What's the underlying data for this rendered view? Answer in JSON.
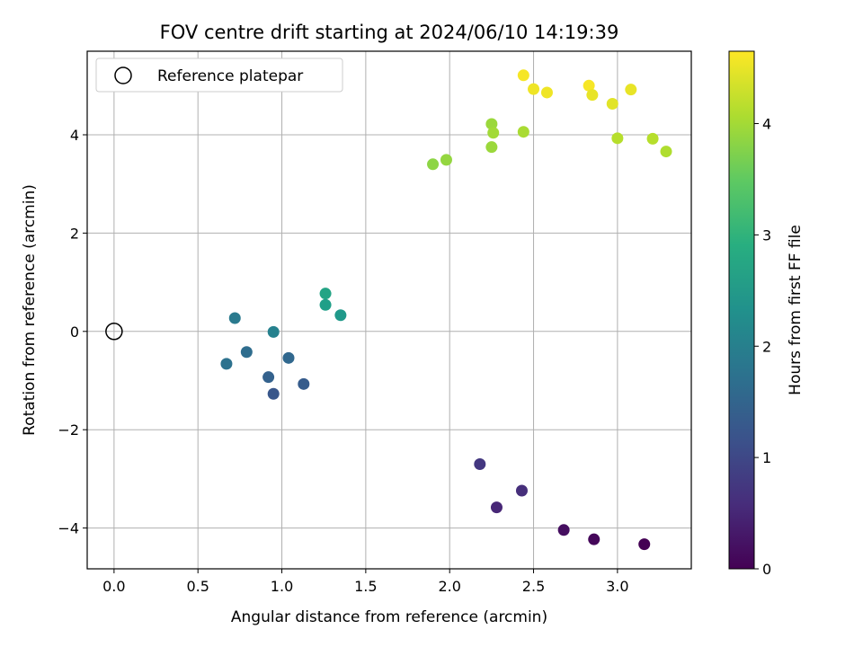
{
  "chart_data": {
    "type": "scatter",
    "title": "FOV centre drift starting at 2024/06/10 14:19:39",
    "xlabel": "Angular distance from reference (arcmin)",
    "ylabel": "Rotation from reference (arcmin)",
    "xlim": [
      -0.16,
      3.44
    ],
    "ylim": [
      -4.83,
      5.7
    ],
    "x_ticks": [
      0.0,
      0.5,
      1.0,
      1.5,
      2.0,
      2.5,
      3.0
    ],
    "x_tick_labels": [
      "0.0",
      "0.5",
      "1.0",
      "1.5",
      "2.0",
      "2.5",
      "3.0"
    ],
    "y_ticks": [
      -4,
      -2,
      0,
      2,
      4
    ],
    "y_tick_labels": [
      "−4",
      "−2",
      "0",
      "2",
      "4"
    ],
    "grid": true,
    "legend": {
      "placement": "top-left",
      "entries": [
        "Reference platepar"
      ]
    },
    "reference_point": {
      "x": 0.0,
      "y": 0.0
    },
    "colorbar": {
      "label": "Hours from first FF file",
      "range": [
        0,
        4.65
      ],
      "ticks": [
        0,
        1,
        2,
        3,
        4
      ],
      "tick_labels": [
        "0",
        "1",
        "2",
        "3",
        "4"
      ],
      "colormap": "viridis"
    },
    "points": [
      {
        "x": 3.16,
        "y": -4.33,
        "hours": 0.0
      },
      {
        "x": 2.86,
        "y": -4.23,
        "hours": 0.08
      },
      {
        "x": 2.68,
        "y": -4.04,
        "hours": 0.17
      },
      {
        "x": 2.28,
        "y": -3.58,
        "hours": 0.5
      },
      {
        "x": 2.43,
        "y": -3.24,
        "hours": 0.62
      },
      {
        "x": 2.18,
        "y": -2.7,
        "hours": 0.75
      },
      {
        "x": 0.95,
        "y": -1.27,
        "hours": 1.25
      },
      {
        "x": 1.13,
        "y": -1.07,
        "hours": 1.35
      },
      {
        "x": 0.92,
        "y": -0.93,
        "hours": 1.45
      },
      {
        "x": 1.04,
        "y": -0.54,
        "hours": 1.55
      },
      {
        "x": 0.79,
        "y": -0.42,
        "hours": 1.65
      },
      {
        "x": 0.67,
        "y": -0.66,
        "hours": 1.75
      },
      {
        "x": 0.72,
        "y": 0.27,
        "hours": 1.9
      },
      {
        "x": 0.95,
        "y": -0.01,
        "hours": 2.05
      },
      {
        "x": 1.35,
        "y": 0.33,
        "hours": 2.5
      },
      {
        "x": 1.26,
        "y": 0.54,
        "hours": 2.6
      },
      {
        "x": 1.26,
        "y": 0.77,
        "hours": 2.7
      },
      {
        "x": 1.9,
        "y": 3.4,
        "hours": 3.85
      },
      {
        "x": 1.98,
        "y": 3.49,
        "hours": 3.9
      },
      {
        "x": 2.25,
        "y": 3.75,
        "hours": 3.95
      },
      {
        "x": 2.25,
        "y": 4.22,
        "hours": 3.95
      },
      {
        "x": 2.26,
        "y": 4.04,
        "hours": 4.0
      },
      {
        "x": 2.44,
        "y": 4.06,
        "hours": 4.05
      },
      {
        "x": 2.44,
        "y": 5.21,
        "hours": 4.6
      },
      {
        "x": 2.5,
        "y": 4.93,
        "hours": 4.55
      },
      {
        "x": 2.58,
        "y": 4.86,
        "hours": 4.55
      },
      {
        "x": 2.83,
        "y": 5.0,
        "hours": 4.6
      },
      {
        "x": 2.85,
        "y": 4.81,
        "hours": 4.5
      },
      {
        "x": 2.97,
        "y": 4.63,
        "hours": 4.45
      },
      {
        "x": 3.08,
        "y": 4.92,
        "hours": 4.5
      },
      {
        "x": 3.0,
        "y": 3.93,
        "hours": 4.15
      },
      {
        "x": 3.21,
        "y": 3.92,
        "hours": 4.15
      },
      {
        "x": 3.29,
        "y": 3.66,
        "hours": 4.1
      }
    ]
  }
}
